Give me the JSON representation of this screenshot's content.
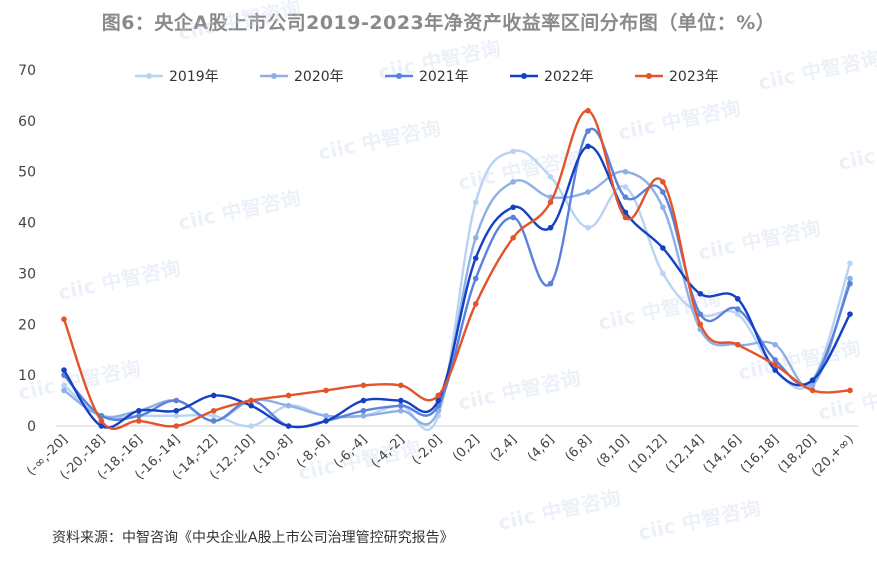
{
  "header": {
    "title": "图6：央企A股上市公司2019-2023年净资产收益率区间分布图（单位：%）"
  },
  "footer": {
    "source": "资料来源：中智咨询《中央企业A股上市公司治理管控研究报告》"
  },
  "watermark": {
    "brand": "ciic",
    "text": "中智咨询"
  },
  "chart_data": {
    "type": "line",
    "smooth": true,
    "categories": [
      "(-∞,-20]",
      "(-20,-18]",
      "(-18,-16]",
      "(-16,-14]",
      "(-14,-12]",
      "(-12,-10]",
      "(-10,-8]",
      "(-8,-6]",
      "(-6,-4]",
      "(-4,-2]",
      "(-2,0]",
      "(0,2]",
      "(2,4]",
      "(4,6]",
      "(6,8]",
      "(8,10]",
      "(10,12]",
      "(12,14]",
      "(14,16]",
      "(16,18]",
      "(18,20]",
      "(20,+∞)"
    ],
    "ylim": [
      0,
      70
    ],
    "yticks": [
      0,
      10,
      20,
      30,
      40,
      50,
      60,
      70
    ],
    "legend_position": "top",
    "grid": false,
    "series": [
      {
        "name": "2019年",
        "color": "#b9d3f2",
        "values": [
          8,
          2,
          2,
          2,
          2,
          0,
          4,
          2,
          2,
          4,
          2,
          44,
          54,
          49,
          39,
          47,
          30,
          22,
          22,
          11,
          9,
          32
        ]
      },
      {
        "name": "2020年",
        "color": "#8fb0e6",
        "values": [
          7,
          2,
          3,
          5,
          1,
          5,
          4,
          2,
          2,
          3,
          3,
          37,
          48,
          45,
          46,
          50,
          43,
          19,
          16,
          16,
          8,
          29
        ]
      },
      {
        "name": "2021年",
        "color": "#5a82dc",
        "values": [
          10,
          2,
          2,
          5,
          1,
          5,
          0,
          1,
          3,
          4,
          4,
          29,
          41,
          28,
          58,
          45,
          46,
          22,
          23,
          13,
          9,
          28
        ]
      },
      {
        "name": "2022年",
        "color": "#1440c4",
        "values": [
          11,
          0,
          3,
          3,
          6,
          4,
          0,
          1,
          5,
          5,
          5,
          33,
          43,
          39,
          55,
          42,
          35,
          26,
          25,
          11,
          9,
          22
        ]
      },
      {
        "name": "2023年",
        "color": "#e3542a",
        "values": [
          21,
          1,
          1,
          0,
          3,
          5,
          6,
          7,
          8,
          8,
          6,
          24,
          37,
          44,
          62,
          41,
          48,
          20,
          16,
          12,
          7,
          7
        ]
      }
    ]
  }
}
